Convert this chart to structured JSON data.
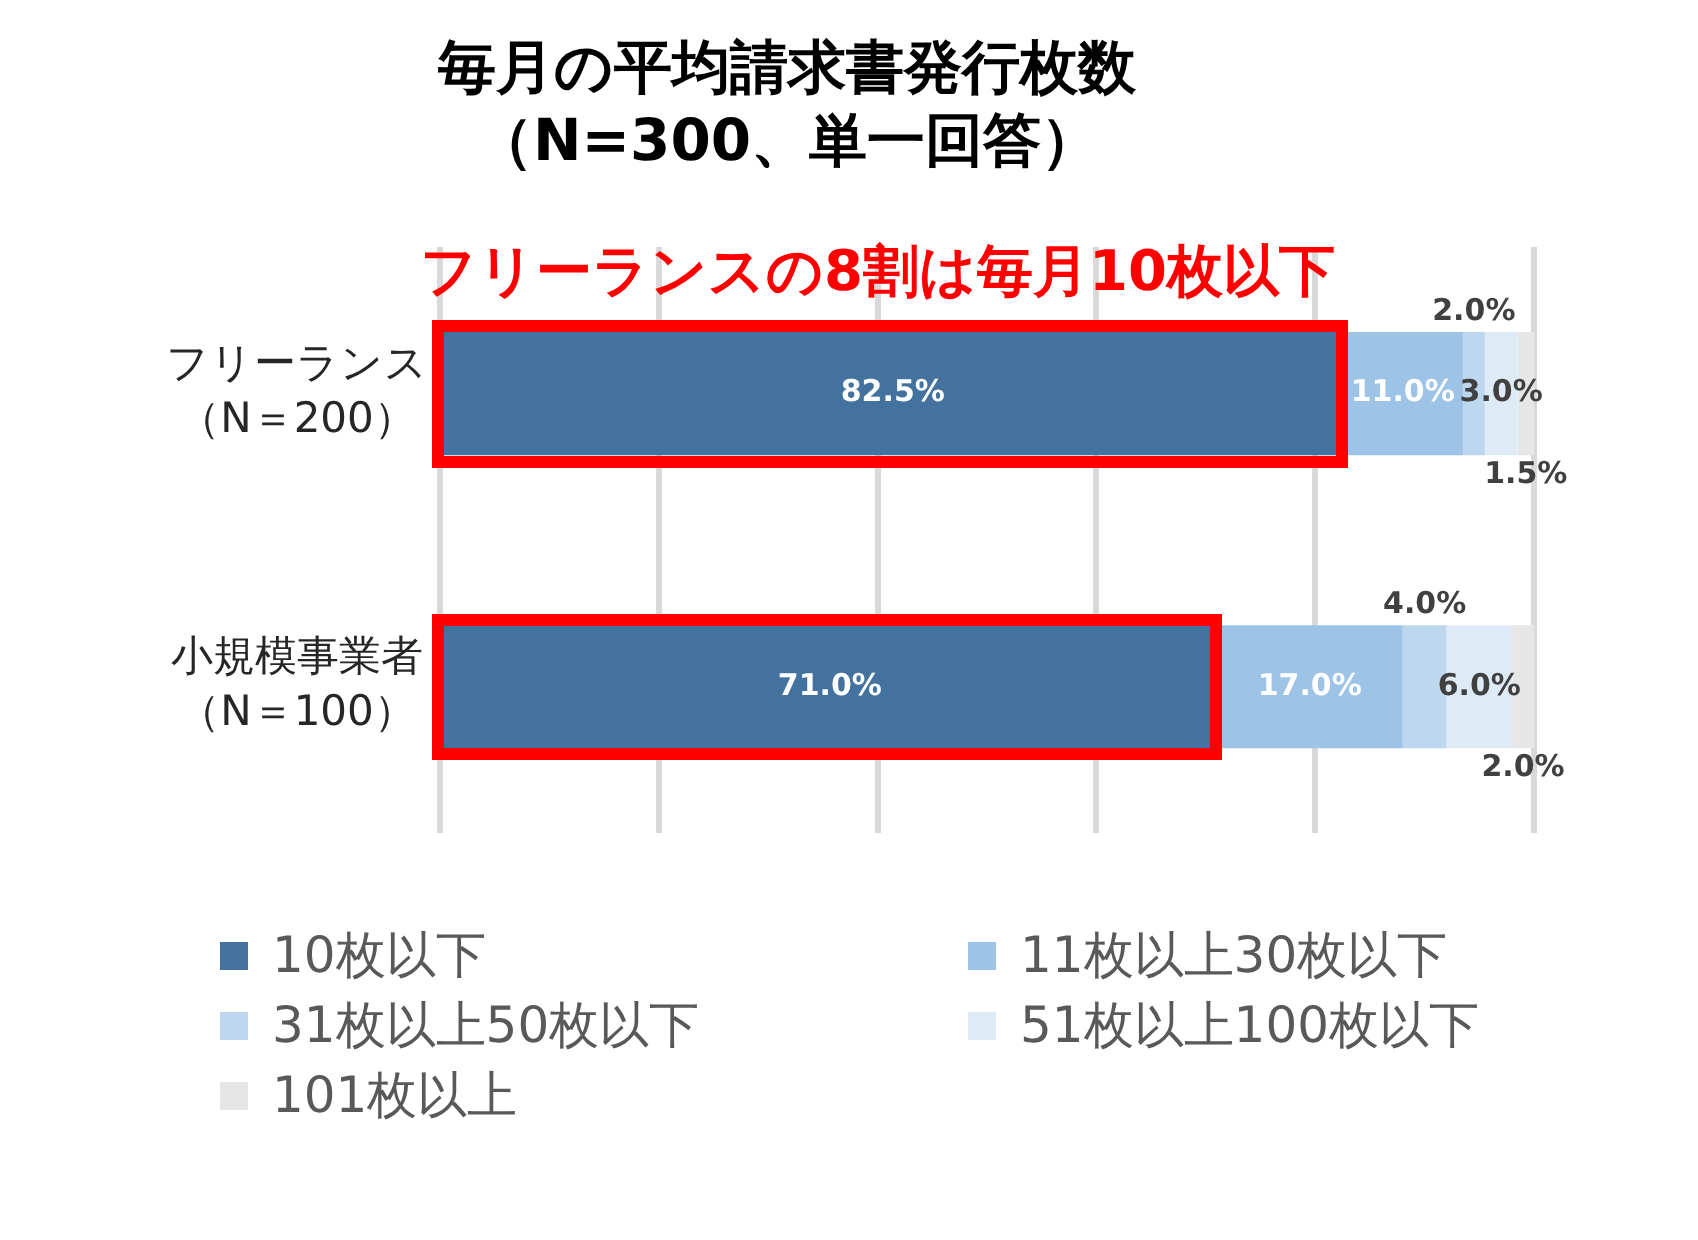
{
  "chart_data": {
    "type": "bar",
    "orientation": "horizontal",
    "stacked": true,
    "title": "毎月の平均請求書発行枚数（N=300、単一回答）",
    "annotations": [
      "フリーランスの8割は毎月10枚以下"
    ],
    "categories": [
      "フリーランス（N＝200）",
      "小規模事業者（N＝100）"
    ],
    "series": [
      {
        "name": "10枚以下",
        "color": "#43729e",
        "values": [
          82.5,
          71.0
        ],
        "value_labels": [
          "82.5%",
          "71.0%"
        ]
      },
      {
        "name": "11枚以上30枚以下",
        "color": "#9dc3e6",
        "values": [
          11.0,
          17.0
        ],
        "value_labels": [
          "11.0%",
          "17.0%"
        ]
      },
      {
        "name": "31枚以上50枚以下",
        "color": "#bdd7ee",
        "values": [
          2.0,
          4.0
        ],
        "value_labels": [
          "2.0%",
          "4.0%"
        ]
      },
      {
        "name": "51枚以上100枚以下",
        "color": "#deebf7",
        "values": [
          3.0,
          6.0
        ],
        "value_labels": [
          "3.0%",
          "6.0%"
        ]
      },
      {
        "name": "101枚以上",
        "color": "#e6e6e6",
        "values": [
          1.5,
          2.0
        ],
        "value_labels": [
          "1.5%",
          "2.0%"
        ]
      }
    ],
    "xlim": [
      0,
      100
    ],
    "xticks": [
      {
        "value": 0,
        "label": null
      },
      {
        "value": 20,
        "label": null
      },
      {
        "value": 40,
        "label": null
      },
      {
        "value": 60,
        "label": null
      },
      {
        "value": 80,
        "label": null
      },
      {
        "value": 100,
        "label": null
      }
    ],
    "grid": "x",
    "legend": "bottom",
    "tick_labels": "y"
  }
}
